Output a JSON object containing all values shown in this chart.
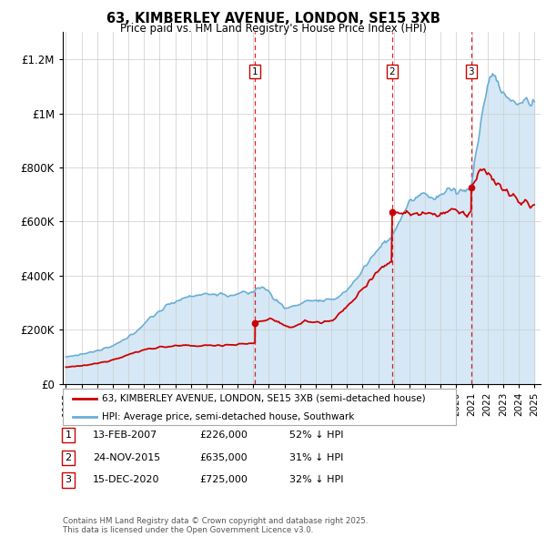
{
  "title": "63, KIMBERLEY AVENUE, LONDON, SE15 3XB",
  "subtitle": "Price paid vs. HM Land Registry's House Price Index (HPI)",
  "hpi_label": "HPI: Average price, semi-detached house, Southwark",
  "property_label": "63, KIMBERLEY AVENUE, LONDON, SE15 3XB (semi-detached house)",
  "hpi_color": "#6baed6",
  "property_color": "#cc0000",
  "hpi_fill_color": "#d6e8f5",
  "background_color": "#ffffff",
  "sale_display": [
    {
      "num": "1",
      "date": "13-FEB-2007",
      "price": "£226,000",
      "note": "52% ↓ HPI"
    },
    {
      "num": "2",
      "date": "24-NOV-2015",
      "price": "£635,000",
      "note": "31% ↓ HPI"
    },
    {
      "num": "3",
      "date": "15-DEC-2020",
      "price": "£725,000",
      "note": "32% ↓ HPI"
    }
  ],
  "sale_years": [
    2007.12,
    2015.9,
    2020.96
  ],
  "sale_prices": [
    226000,
    635000,
    725000
  ],
  "footer": "Contains HM Land Registry data © Crown copyright and database right 2025.\nThis data is licensed under the Open Government Licence v3.0.",
  "ylim": [
    0,
    1300000
  ],
  "yticks": [
    0,
    200000,
    400000,
    600000,
    800000,
    1000000,
    1200000
  ],
  "ytick_labels": [
    "£0",
    "£200K",
    "£400K",
    "£600K",
    "£800K",
    "£1M",
    "£1.2M"
  ]
}
